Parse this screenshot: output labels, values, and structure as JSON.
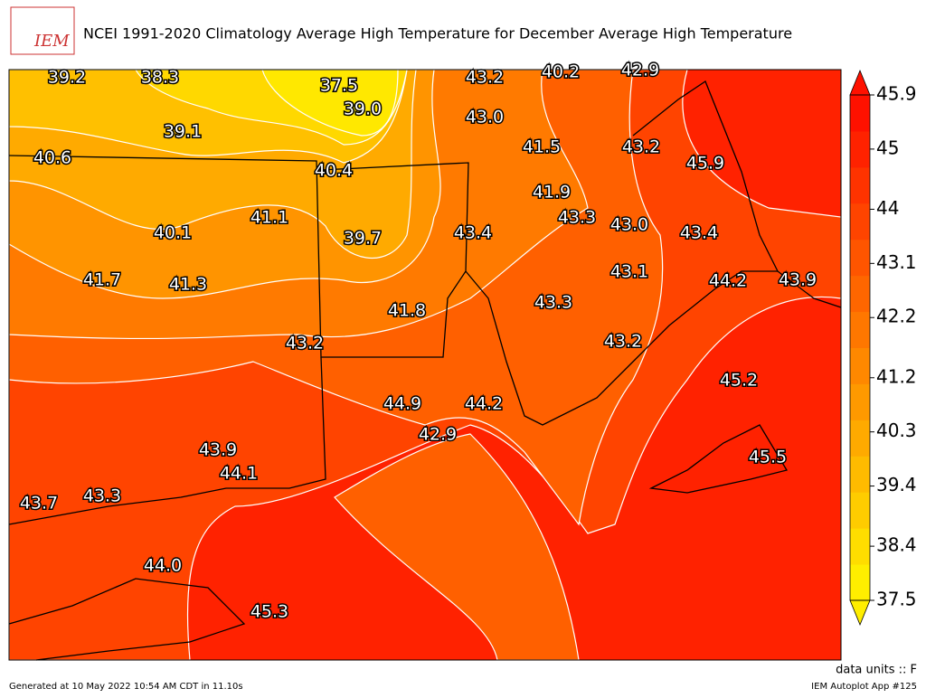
{
  "header": {
    "title": "NCEI 1991-2020 Climatology Average High Temperature for December Average High Temperature",
    "logo": "IEM"
  },
  "map": {
    "labels": [
      "39.2",
      "38.3",
      "37.5",
      "39.0",
      "43.2",
      "40.2",
      "42.9",
      "43.0",
      "39.1",
      "41.5",
      "43.2",
      "40.6",
      "40.4",
      "45.9",
      "41.9",
      "41.1",
      "43.3",
      "43.0",
      "40.1",
      "43.4",
      "39.7",
      "43.4",
      "43.1",
      "41.7",
      "41.3",
      "44.2",
      "43.9",
      "43.3",
      "41.8",
      "43.2",
      "43.2",
      "45.2",
      "44.9",
      "44.2",
      "42.9",
      "43.9",
      "44.1",
      "45.5",
      "43.7",
      "43.3",
      "44.0",
      "45.3"
    ]
  },
  "colorbar": {
    "ticks": [
      37.5,
      38.4,
      39.4,
      40.3,
      41.2,
      42.2,
      43.1,
      44,
      45,
      45.9
    ],
    "colors": [
      "#ffee00",
      "#ffdd00",
      "#ffcc00",
      "#ffbb00",
      "#ffaa00",
      "#ff9900",
      "#ff8800",
      "#ff7700",
      "#ff6600",
      "#ff5500",
      "#ff4400",
      "#ff3300",
      "#ff2200",
      "#ff1100"
    ]
  },
  "footer": {
    "units": "data units :: F",
    "generated": "Generated at 10 May 2022 10:54 AM CDT in 11.10s",
    "app": "IEM Autoplot App #125"
  }
}
